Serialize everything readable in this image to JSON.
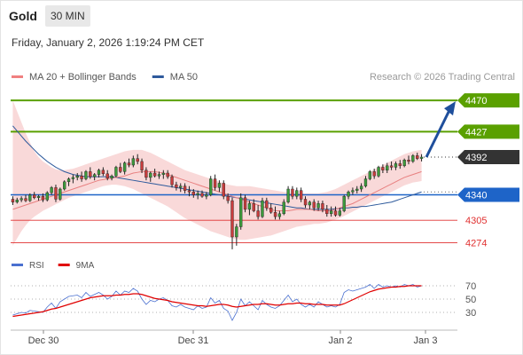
{
  "header": {
    "instrument": "Gold",
    "timeframe": "30 MIN",
    "timestamp": "Friday, January 2, 2026 1:19:24 PM CET"
  },
  "chart_data": [
    {
      "type": "candlestick",
      "legend": [
        {
          "label": "MA 20 + Bollinger Bands",
          "color": "#f08080"
        },
        {
          "label": "MA 50",
          "color": "#2e5a9c"
        }
      ],
      "credit": "Research © 2026 Trading Central",
      "x_ticks": [
        "Dec 30",
        "Dec 31",
        "Jan 2",
        "Jan 3"
      ],
      "ylim": [
        4260,
        4480
      ],
      "grid": false,
      "candles": [
        {
          "o": 4334,
          "h": 4338,
          "l": 4326,
          "c": 4330
        },
        {
          "o": 4330,
          "h": 4336,
          "l": 4328,
          "c": 4333
        },
        {
          "o": 4333,
          "h": 4338,
          "l": 4330,
          "c": 4335
        },
        {
          "o": 4335,
          "h": 4340,
          "l": 4330,
          "c": 4332
        },
        {
          "o": 4332,
          "h": 4342,
          "l": 4330,
          "c": 4340
        },
        {
          "o": 4340,
          "h": 4344,
          "l": 4334,
          "c": 4336
        },
        {
          "o": 4336,
          "h": 4340,
          "l": 4332,
          "c": 4338
        },
        {
          "o": 4338,
          "h": 4342,
          "l": 4330,
          "c": 4333
        },
        {
          "o": 4333,
          "h": 4345,
          "l": 4331,
          "c": 4343
        },
        {
          "o": 4343,
          "h": 4352,
          "l": 4340,
          "c": 4350
        },
        {
          "o": 4350,
          "h": 4354,
          "l": 4330,
          "c": 4334
        },
        {
          "o": 4334,
          "h": 4350,
          "l": 4332,
          "c": 4348
        },
        {
          "o": 4348,
          "h": 4360,
          "l": 4346,
          "c": 4358
        },
        {
          "o": 4358,
          "h": 4364,
          "l": 4352,
          "c": 4362
        },
        {
          "o": 4362,
          "h": 4368,
          "l": 4356,
          "c": 4364
        },
        {
          "o": 4364,
          "h": 4370,
          "l": 4360,
          "c": 4366
        },
        {
          "o": 4366,
          "h": 4372,
          "l": 4358,
          "c": 4362
        },
        {
          "o": 4362,
          "h": 4374,
          "l": 4360,
          "c": 4372
        },
        {
          "o": 4372,
          "h": 4378,
          "l": 4362,
          "c": 4365
        },
        {
          "o": 4365,
          "h": 4370,
          "l": 4360,
          "c": 4368
        },
        {
          "o": 4368,
          "h": 4376,
          "l": 4364,
          "c": 4374
        },
        {
          "o": 4374,
          "h": 4378,
          "l": 4366,
          "c": 4369
        },
        {
          "o": 4369,
          "h": 4374,
          "l": 4360,
          "c": 4363
        },
        {
          "o": 4363,
          "h": 4368,
          "l": 4360,
          "c": 4366
        },
        {
          "o": 4366,
          "h": 4380,
          "l": 4364,
          "c": 4378
        },
        {
          "o": 4378,
          "h": 4384,
          "l": 4370,
          "c": 4372
        },
        {
          "o": 4372,
          "h": 4386,
          "l": 4368,
          "c": 4384
        },
        {
          "o": 4384,
          "h": 4390,
          "l": 4378,
          "c": 4381
        },
        {
          "o": 4381,
          "h": 4394,
          "l": 4378,
          "c": 4390
        },
        {
          "o": 4390,
          "h": 4396,
          "l": 4382,
          "c": 4386
        },
        {
          "o": 4386,
          "h": 4390,
          "l": 4370,
          "c": 4374
        },
        {
          "o": 4374,
          "h": 4378,
          "l": 4360,
          "c": 4364
        },
        {
          "o": 4364,
          "h": 4372,
          "l": 4358,
          "c": 4370
        },
        {
          "o": 4370,
          "h": 4376,
          "l": 4364,
          "c": 4366
        },
        {
          "o": 4366,
          "h": 4372,
          "l": 4362,
          "c": 4368
        },
        {
          "o": 4368,
          "h": 4374,
          "l": 4362,
          "c": 4370
        },
        {
          "o": 4370,
          "h": 4374,
          "l": 4362,
          "c": 4365
        },
        {
          "o": 4365,
          "h": 4368,
          "l": 4350,
          "c": 4354
        },
        {
          "o": 4354,
          "h": 4358,
          "l": 4346,
          "c": 4350
        },
        {
          "o": 4350,
          "h": 4356,
          "l": 4344,
          "c": 4352
        },
        {
          "o": 4352,
          "h": 4356,
          "l": 4342,
          "c": 4346
        },
        {
          "o": 4346,
          "h": 4352,
          "l": 4338,
          "c": 4344
        },
        {
          "o": 4344,
          "h": 4348,
          "l": 4336,
          "c": 4340
        },
        {
          "o": 4340,
          "h": 4346,
          "l": 4334,
          "c": 4342
        },
        {
          "o": 4342,
          "h": 4346,
          "l": 4336,
          "c": 4338
        },
        {
          "o": 4338,
          "h": 4344,
          "l": 4334,
          "c": 4340
        },
        {
          "o": 4340,
          "h": 4366,
          "l": 4338,
          "c": 4362
        },
        {
          "o": 4362,
          "h": 4368,
          "l": 4346,
          "c": 4350
        },
        {
          "o": 4350,
          "h": 4360,
          "l": 4344,
          "c": 4356
        },
        {
          "o": 4356,
          "h": 4360,
          "l": 4334,
          "c": 4338
        },
        {
          "o": 4338,
          "h": 4342,
          "l": 4328,
          "c": 4332
        },
        {
          "o": 4332,
          "h": 4336,
          "l": 4265,
          "c": 4282
        },
        {
          "o": 4282,
          "h": 4300,
          "l": 4270,
          "c": 4296
        },
        {
          "o": 4296,
          "h": 4342,
          "l": 4292,
          "c": 4336
        },
        {
          "o": 4336,
          "h": 4340,
          "l": 4316,
          "c": 4320
        },
        {
          "o": 4320,
          "h": 4332,
          "l": 4312,
          "c": 4328
        },
        {
          "o": 4328,
          "h": 4334,
          "l": 4316,
          "c": 4318
        },
        {
          "o": 4318,
          "h": 4326,
          "l": 4306,
          "c": 4310
        },
        {
          "o": 4310,
          "h": 4336,
          "l": 4308,
          "c": 4332
        },
        {
          "o": 4332,
          "h": 4336,
          "l": 4318,
          "c": 4322
        },
        {
          "o": 4322,
          "h": 4328,
          "l": 4314,
          "c": 4316
        },
        {
          "o": 4316,
          "h": 4324,
          "l": 4306,
          "c": 4310
        },
        {
          "o": 4310,
          "h": 4318,
          "l": 4306,
          "c": 4314
        },
        {
          "o": 4314,
          "h": 4334,
          "l": 4312,
          "c": 4330
        },
        {
          "o": 4330,
          "h": 4352,
          "l": 4328,
          "c": 4348
        },
        {
          "o": 4348,
          "h": 4352,
          "l": 4334,
          "c": 4338
        },
        {
          "o": 4338,
          "h": 4350,
          "l": 4334,
          "c": 4346
        },
        {
          "o": 4346,
          "h": 4350,
          "l": 4330,
          "c": 4334
        },
        {
          "o": 4334,
          "h": 4338,
          "l": 4322,
          "c": 4326
        },
        {
          "o": 4326,
          "h": 4332,
          "l": 4320,
          "c": 4330
        },
        {
          "o": 4330,
          "h": 4334,
          "l": 4318,
          "c": 4322
        },
        {
          "o": 4322,
          "h": 4332,
          "l": 4318,
          "c": 4328
        },
        {
          "o": 4328,
          "h": 4332,
          "l": 4316,
          "c": 4320
        },
        {
          "o": 4320,
          "h": 4326,
          "l": 4310,
          "c": 4314
        },
        {
          "o": 4314,
          "h": 4324,
          "l": 4310,
          "c": 4318
        },
        {
          "o": 4318,
          "h": 4324,
          "l": 4310,
          "c": 4312
        },
        {
          "o": 4312,
          "h": 4322,
          "l": 4310,
          "c": 4318
        },
        {
          "o": 4318,
          "h": 4340,
          "l": 4316,
          "c": 4338
        },
        {
          "o": 4338,
          "h": 4346,
          "l": 4334,
          "c": 4344
        },
        {
          "o": 4344,
          "h": 4350,
          "l": 4340,
          "c": 4346
        },
        {
          "o": 4346,
          "h": 4352,
          "l": 4342,
          "c": 4348
        },
        {
          "o": 4348,
          "h": 4356,
          "l": 4344,
          "c": 4352
        },
        {
          "o": 4352,
          "h": 4366,
          "l": 4350,
          "c": 4362
        },
        {
          "o": 4362,
          "h": 4374,
          "l": 4360,
          "c": 4372
        },
        {
          "o": 4372,
          "h": 4376,
          "l": 4362,
          "c": 4366
        },
        {
          "o": 4366,
          "h": 4380,
          "l": 4364,
          "c": 4378
        },
        {
          "o": 4378,
          "h": 4382,
          "l": 4370,
          "c": 4374
        },
        {
          "o": 4374,
          "h": 4384,
          "l": 4370,
          "c": 4380
        },
        {
          "o": 4380,
          "h": 4386,
          "l": 4374,
          "c": 4378
        },
        {
          "o": 4378,
          "h": 4386,
          "l": 4374,
          "c": 4383
        },
        {
          "o": 4383,
          "h": 4388,
          "l": 4376,
          "c": 4380
        },
        {
          "o": 4380,
          "h": 4390,
          "l": 4378,
          "c": 4388
        },
        {
          "o": 4388,
          "h": 4394,
          "l": 4382,
          "c": 4386
        },
        {
          "o": 4386,
          "h": 4396,
          "l": 4384,
          "c": 4394
        },
        {
          "o": 4394,
          "h": 4398,
          "l": 4388,
          "c": 4390
        },
        {
          "o": 4390,
          "h": 4396,
          "l": 4386,
          "c": 4392
        }
      ],
      "ma20": [
        4320,
        4322,
        4324,
        4326,
        4328,
        4330,
        4332,
        4334,
        4336,
        4338,
        4340,
        4342,
        4344,
        4346,
        4348,
        4350,
        4352,
        4354,
        4356,
        4358,
        4360,
        4361,
        4362,
        4363,
        4364,
        4365,
        4366,
        4368,
        4370,
        4371,
        4372,
        4372,
        4372,
        4372,
        4371,
        4370,
        4368,
        4366,
        4364,
        4362,
        4360,
        4358,
        4356,
        4354,
        4352,
        4350,
        4348,
        4346,
        4344,
        4342,
        4340,
        4338,
        4336,
        4334,
        4332,
        4330,
        4328,
        4326,
        4324,
        4322,
        4320,
        4318,
        4318,
        4318,
        4318,
        4319,
        4320,
        4320,
        4320,
        4320,
        4319,
        4318,
        4318,
        4318,
        4318,
        4320,
        4322,
        4324,
        4326,
        4328,
        4331,
        4334,
        4337,
        4340,
        4343,
        4346,
        4349,
        4352,
        4355,
        4358,
        4361,
        4364,
        4366,
        4368,
        4370,
        4372
      ],
      "bb_upper": [
        4470,
        4455,
        4440,
        4425,
        4412,
        4400,
        4392,
        4386,
        4382,
        4378,
        4375,
        4374,
        4374,
        4375,
        4376,
        4378,
        4380,
        4382,
        4384,
        4386,
        4388,
        4390,
        4392,
        4394,
        4396,
        4398,
        4400,
        4401,
        4402,
        4402,
        4402,
        4400,
        4398,
        4395,
        4392,
        4389,
        4386,
        4383,
        4380,
        4377,
        4374,
        4372,
        4370,
        4368,
        4366,
        4364,
        4362,
        4360,
        4358,
        4356,
        4354,
        4353,
        4352,
        4352,
        4352,
        4352,
        4351,
        4350,
        4349,
        4348,
        4347,
        4346,
        4345,
        4344,
        4343,
        4342,
        4342,
        4342,
        4342,
        4342,
        4342,
        4342,
        4343,
        4344,
        4346,
        4348,
        4351,
        4354,
        4357,
        4360,
        4363,
        4366,
        4369,
        4372,
        4375,
        4378,
        4381,
        4384,
        4387,
        4390,
        4393,
        4396,
        4398,
        4400,
        4401,
        4402
      ],
      "bb_lower": [
        4270,
        4280,
        4290,
        4298,
        4305,
        4310,
        4314,
        4318,
        4321,
        4324,
        4327,
        4330,
        4333,
        4336,
        4338,
        4340,
        4342,
        4344,
        4346,
        4348,
        4350,
        4352,
        4353,
        4354,
        4354,
        4353,
        4352,
        4350,
        4348,
        4345,
        4342,
        4339,
        4336,
        4333,
        4330,
        4327,
        4324,
        4320,
        4316,
        4312,
        4308,
        4305,
        4302,
        4299,
        4296,
        4293,
        4290,
        4288,
        4286,
        4284,
        4282,
        4280,
        4279,
        4278,
        4278,
        4279,
        4280,
        4281,
        4282,
        4283,
        4284,
        4286,
        4288,
        4290,
        4292,
        4294,
        4296,
        4297,
        4298,
        4299,
        4300,
        4300,
        4301,
        4302,
        4304,
        4306,
        4308,
        4311,
        4314,
        4317,
        4320,
        4323,
        4326,
        4329,
        4332,
        4335,
        4338,
        4341,
        4344,
        4347,
        4350,
        4353,
        4355,
        4357,
        4358,
        4359
      ],
      "ma50": [
        4435,
        4428,
        4421,
        4414,
        4408,
        4402,
        4396,
        4391,
        4386,
        4382,
        4378,
        4375,
        4372,
        4370,
        4368,
        4367,
        4366,
        4365,
        4365,
        4365,
        4365,
        4365,
        4365,
        4365,
        4364,
        4363,
        4362,
        4361,
        4360,
        4359,
        4358,
        4357,
        4356,
        4355,
        4354,
        4353,
        4352,
        4351,
        4350,
        4349,
        4348,
        4347,
        4346,
        4345,
        4344,
        4343,
        4342,
        4341,
        4340,
        4339,
        4338,
        4337,
        4336,
        4335,
        4334,
        4333,
        4332,
        4331,
        4330,
        4329,
        4328,
        4327,
        4326,
        4325,
        4324,
        4323,
        4322,
        4322,
        4321,
        4320,
        4320,
        4320,
        4320,
        4320,
        4320,
        4321,
        4321,
        4322,
        4322,
        4323,
        4323,
        4324,
        4324,
        4325,
        4326,
        4327,
        4328,
        4329,
        4330,
        4332,
        4334,
        4336,
        4338,
        4340,
        4342,
        4344
      ],
      "levels": [
        {
          "value": 4470,
          "label": "4470",
          "kind": "resistance",
          "color": "#5aa000"
        },
        {
          "value": 4427,
          "label": "4427",
          "kind": "resistance",
          "color": "#5aa000"
        },
        {
          "value": 4392,
          "label": "4392",
          "kind": "last",
          "color": "#333333"
        },
        {
          "value": 4340,
          "label": "4340",
          "kind": "pivot",
          "color": "#1e64c8"
        },
        {
          "value": 4305,
          "label": "4305",
          "kind": "support",
          "color": "#e03030"
        },
        {
          "value": 4274,
          "label": "4274",
          "kind": "support",
          "color": "#e03030"
        }
      ],
      "forecast_arrow": {
        "from": 4392,
        "to": 4470
      }
    },
    {
      "type": "line",
      "legend": [
        {
          "label": "RSI",
          "color": "#4a70d0"
        },
        {
          "label": "9MA",
          "color": "#e00000"
        }
      ],
      "y_ticks": [
        70,
        50,
        30
      ],
      "ylim": [
        10,
        90
      ],
      "rsi": [
        26,
        28,
        30,
        29,
        33,
        32,
        31,
        30,
        38,
        44,
        36,
        46,
        50,
        54,
        55,
        56,
        52,
        60,
        54,
        57,
        60,
        56,
        50,
        54,
        62,
        56,
        62,
        60,
        66,
        62,
        50,
        42,
        48,
        46,
        50,
        52,
        48,
        40,
        38,
        42,
        38,
        36,
        34,
        40,
        36,
        38,
        52,
        44,
        48,
        36,
        32,
        18,
        30,
        50,
        40,
        46,
        40,
        34,
        48,
        42,
        38,
        36,
        40,
        48,
        56,
        46,
        50,
        42,
        38,
        42,
        38,
        46,
        42,
        38,
        40,
        38,
        42,
        60,
        64,
        62,
        64,
        66,
        68,
        72,
        66,
        72,
        68,
        70,
        68,
        70,
        68,
        72,
        70,
        72,
        68,
        70
      ],
      "ma9": [
        24,
        25,
        26,
        27,
        28,
        29,
        30,
        31,
        33,
        35,
        36,
        38,
        40,
        42,
        44,
        46,
        48,
        50,
        52,
        53,
        54,
        55,
        55,
        55,
        56,
        56,
        57,
        57,
        58,
        58,
        57,
        55,
        53,
        51,
        50,
        49,
        48,
        46,
        45,
        44,
        43,
        42,
        41,
        40,
        40,
        39,
        40,
        41,
        42,
        42,
        41,
        39,
        38,
        39,
        40,
        41,
        42,
        42,
        43,
        43,
        42,
        41,
        41,
        42,
        43,
        43,
        44,
        44,
        43,
        43,
        42,
        42,
        42,
        41,
        41,
        41,
        41,
        43,
        46,
        49,
        52,
        55,
        58,
        61,
        63,
        65,
        66,
        67,
        68,
        68,
        69,
        69,
        70,
        70,
        70,
        70
      ]
    }
  ]
}
